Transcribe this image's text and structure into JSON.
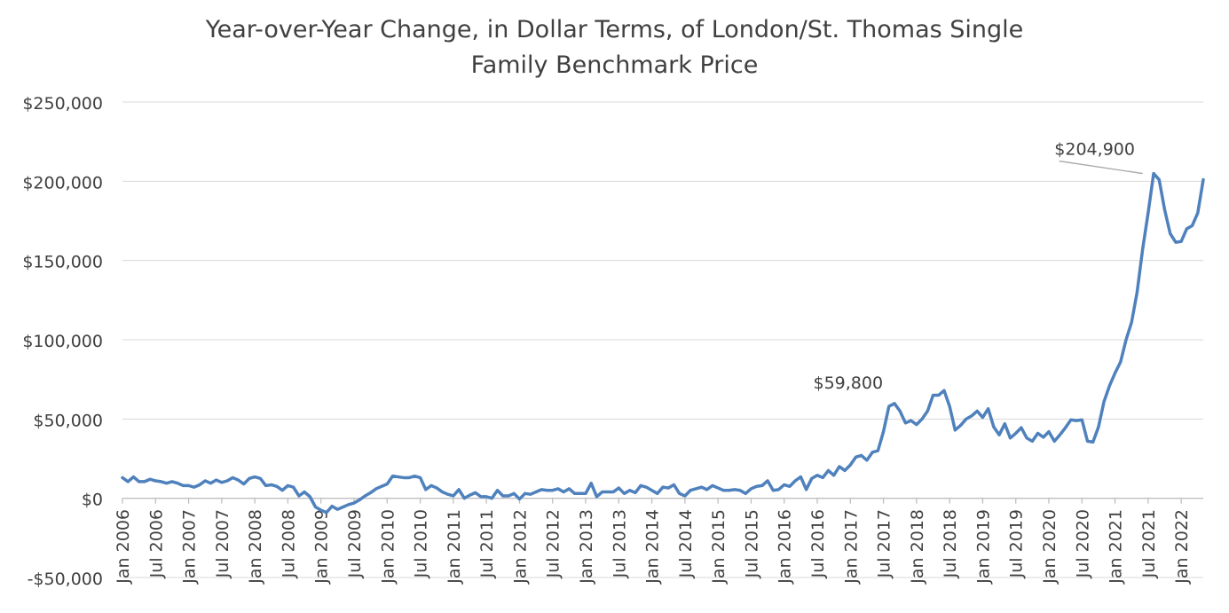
{
  "chart_data": {
    "type": "line",
    "title": "Year-over-Year Change, in Dollar Terms, of London/St. Thomas Single Family Benchmark Price",
    "title_lines": [
      "Year-over-Year Change, in Dollar Terms, of London/St. Thomas Single",
      "Family Benchmark Price"
    ],
    "xlabel": "",
    "ylabel": "",
    "ylim": [
      -50000,
      250000
    ],
    "y_ticks": [
      -50000,
      0,
      50000,
      100000,
      150000,
      200000,
      250000
    ],
    "y_tick_labels": [
      "-$50,000",
      "$0",
      "$50,000",
      "$100,000",
      "$150,000",
      "$200,000",
      "$250,000"
    ],
    "x_start": "Jan 2006",
    "x_end": "Jan 2022",
    "x_tick_labels": [
      "Jan 2006",
      "Jul 2006",
      "Jan 2007",
      "Jul 2007",
      "Jan 2008",
      "Jul 2008",
      "Jan 2009",
      "Jul 2009",
      "Jan 2010",
      "Jul 2010",
      "Jan 2011",
      "Jul 2011",
      "Jan 2012",
      "Jul 2012",
      "Jan 2013",
      "Jul 2013",
      "Jan 2014",
      "Jul 2014",
      "Jan 2015",
      "Jul 2015",
      "Jan 2016",
      "Jul 2016",
      "Jan 2017",
      "Jul 2017",
      "Jan 2018",
      "Jul 2018",
      "Jan 2019",
      "Jul 2019",
      "Jan 2020",
      "Jul 2020",
      "Jan 2021",
      "Jul 2021",
      "Jan 2022"
    ],
    "grid": true,
    "legend": "none",
    "series_color": "#4F81BD",
    "series": [
      {
        "values": [
          13000,
          10500,
          13500,
          10500,
          10500,
          12000,
          11000,
          10500,
          9500,
          10500,
          9500,
          8000,
          8000,
          7000,
          8500,
          11000,
          9500,
          11500,
          10000,
          11000,
          13000,
          11500,
          9000,
          12500,
          13500,
          12500,
          8000,
          8500,
          7500,
          5000,
          8000,
          7000,
          1500,
          4000,
          1000,
          -5500,
          -7500,
          -9000,
          -5000,
          -7000,
          -5500,
          -4000,
          -3000,
          -1000,
          1500,
          3500,
          6000,
          7500,
          9000,
          14000,
          13500,
          13000,
          13000,
          14000,
          13000,
          5500,
          8000,
          6500,
          4000,
          2500,
          1500,
          5500,
          0,
          2000,
          3500,
          1000,
          1000,
          0,
          5000,
          1500,
          1500,
          3000,
          -500,
          3000,
          2500,
          4000,
          5500,
          5000,
          5000,
          6000,
          4000,
          6000,
          3000,
          3000,
          3000,
          9500,
          1000,
          4000,
          4000,
          4000,
          6500,
          3000,
          5000,
          3500,
          8000,
          7000,
          5000,
          3000,
          7000,
          6500,
          8500,
          3000,
          1500,
          5000,
          6000,
          7000,
          5500,
          8000,
          6500,
          5000,
          5000,
          5500,
          5000,
          3000,
          6000,
          7500,
          8000,
          11000,
          5000,
          5500,
          8500,
          7500,
          11000,
          13500,
          5500,
          12500,
          14500,
          13000,
          17500,
          14500,
          20000,
          17500,
          21000,
          26000,
          27000,
          24000,
          29000,
          30000,
          42000,
          58000,
          59800,
          55000,
          47500,
          49000,
          46500,
          50000,
          55000,
          65000,
          65000,
          68000,
          58000,
          43000,
          46000,
          50000,
          52000,
          55000,
          51000,
          56500,
          45000,
          40000,
          47000,
          38000,
          41000,
          44500,
          38000,
          36000,
          41000,
          38500,
          42000,
          36000,
          40000,
          44500,
          49500,
          49000,
          49500,
          36000,
          35500,
          45000,
          61000,
          71000,
          79000,
          86000,
          100000,
          111000,
          130000,
          157000,
          180000,
          204900,
          201000,
          182000,
          167000,
          161500,
          162000,
          170000,
          172000,
          180000,
          201000
        ]
      }
    ],
    "annotations": [
      {
        "text": "$59,800",
        "index": 139,
        "value": 59800
      },
      {
        "text": "$204,900",
        "index": 185,
        "value": 204900
      }
    ]
  }
}
